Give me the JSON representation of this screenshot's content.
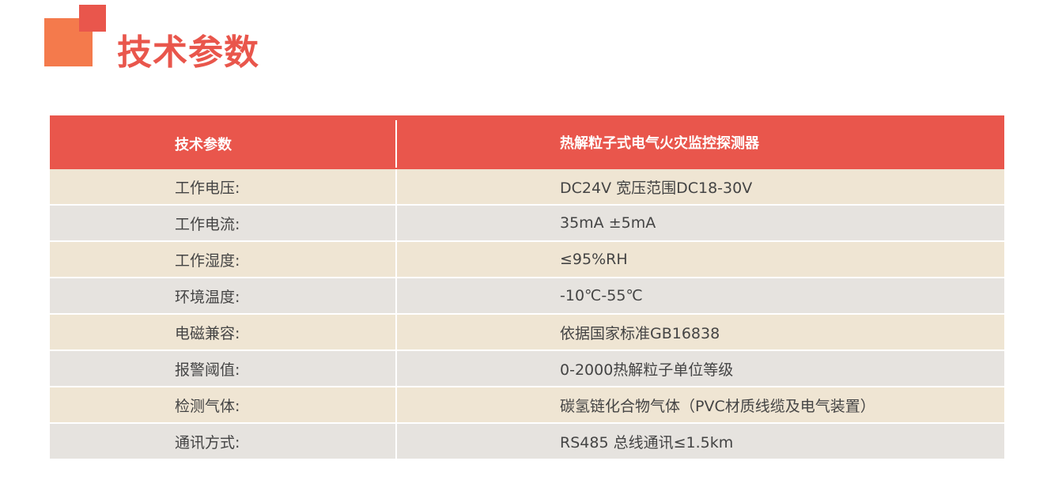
{
  "title": "技术参数",
  "colors": {
    "accent": "#e9564c",
    "accent2": "#f47a4c",
    "row_a": "#efe5d3",
    "row_b": "#e6e3df"
  },
  "table": {
    "headers": [
      "技术参数",
      "热解粒子式电气火灾监控探测器"
    ],
    "rows": [
      [
        "工作电压:",
        "DC24V 宽压范围DC18-30V"
      ],
      [
        "工作电流:",
        "35mA ±5mA"
      ],
      [
        "工作湿度:",
        "≤95%RH"
      ],
      [
        "环境温度:",
        "-10℃-55℃"
      ],
      [
        "电磁兼容:",
        "依据国家标准GB16838"
      ],
      [
        "报警阈值:",
        "0-2000热解粒子单位等级"
      ],
      [
        "检测气体:",
        "碳氢链化合物气体（PVC材质线缆及电气装置）"
      ],
      [
        "通讯方式:",
        "RS485  总线通讯≤1.5km"
      ]
    ]
  }
}
